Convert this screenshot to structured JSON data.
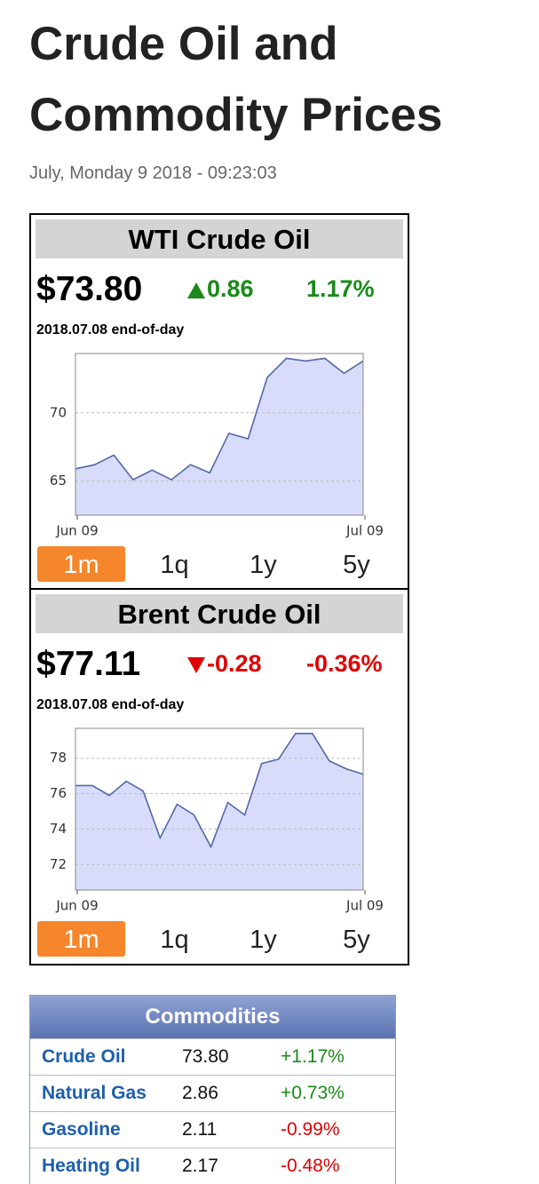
{
  "header": {
    "title": "Crude Oil and Commodity Prices",
    "date": "July, Monday 9 2018 - 09:23:03"
  },
  "widgets": [
    {
      "name": "WTI Crude Oil",
      "price": "$73.80",
      "change": "0.86",
      "change_pct": "1.17%",
      "direction": "up",
      "color": "#1a8a1a",
      "asof": "2018.07.08 end-of-day",
      "chart": {
        "type": "area",
        "categories": [
          "Jun 09",
          null,
          null,
          null,
          null,
          null,
          null,
          null,
          null,
          null,
          null,
          null,
          null,
          null,
          null,
          "Jul 09"
        ],
        "values": [
          65.9,
          66.2,
          66.9,
          65.1,
          65.8,
          65.1,
          66.2,
          65.6,
          68.5,
          68.1,
          72.6,
          74.0,
          73.8,
          74.0,
          72.9,
          73.8
        ],
        "ylim": [
          62.5,
          74.35
        ],
        "yticks": [
          65,
          70
        ],
        "grid": true,
        "color": "#5468a8",
        "fill": "#d8dcfa"
      },
      "ranges": [
        "1m",
        "1q",
        "1y",
        "5y"
      ],
      "active_range": 0
    },
    {
      "name": "Brent Crude Oil",
      "price": "$77.11",
      "change": "-0.28",
      "change_pct": "-0.36%",
      "direction": "down",
      "color": "#e00000",
      "asof": "2018.07.08 end-of-day",
      "chart": {
        "type": "area",
        "categories": [
          "Jun 09",
          null,
          null,
          null,
          null,
          null,
          null,
          null,
          null,
          null,
          null,
          null,
          null,
          null,
          null,
          null,
          null,
          "Jul 09"
        ],
        "values": [
          76.46,
          76.46,
          75.9,
          76.7,
          76.15,
          73.5,
          75.4,
          74.8,
          73.0,
          75.5,
          74.8,
          77.7,
          77.95,
          79.4,
          79.4,
          77.85,
          77.4,
          77.1
        ],
        "ylim": [
          70.56,
          79.69
        ],
        "yticks": [
          72,
          74,
          76,
          78
        ],
        "grid": true,
        "color": "#5468a8",
        "fill": "#d8dcfa"
      },
      "ranges": [
        "1m",
        "1q",
        "1y",
        "5y"
      ],
      "active_range": 0
    }
  ],
  "commodities": {
    "title": "Commodities",
    "rows": [
      [
        "Crude Oil",
        "73.80",
        "+1.17%"
      ],
      [
        "Natural Gas",
        "2.86",
        "+0.73%"
      ],
      [
        "Gasoline",
        "2.11",
        "-0.99%"
      ],
      [
        "Heating Oil",
        "2.17",
        "-0.48%"
      ]
    ]
  }
}
